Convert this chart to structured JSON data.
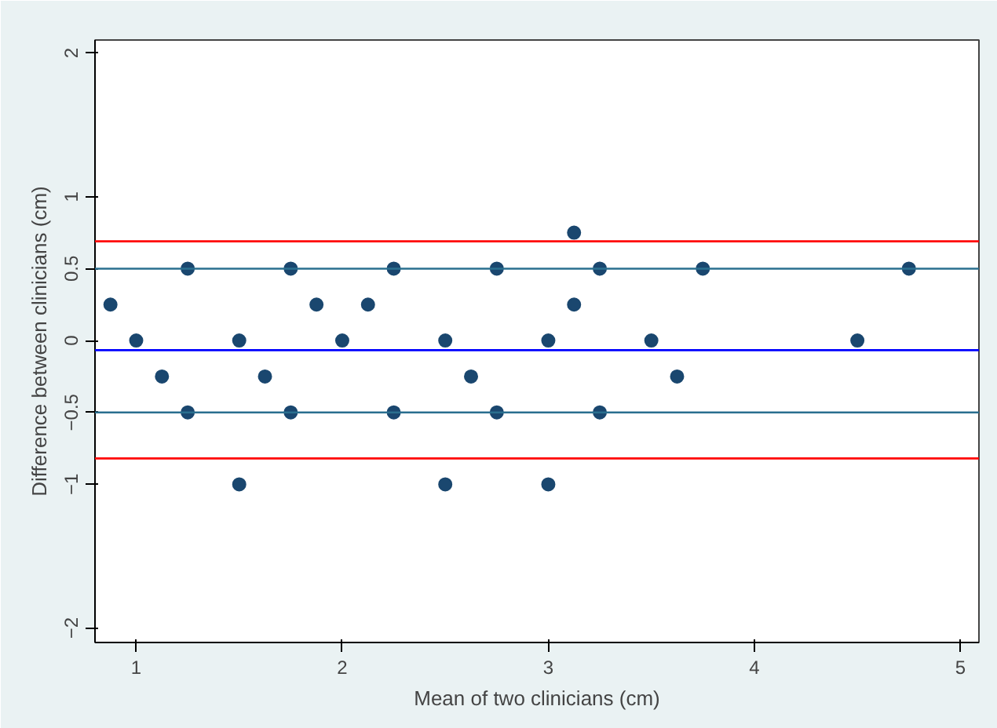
{
  "chart_data": {
    "type": "scatter",
    "xlabel": "Mean of two clinicians (cm)",
    "ylabel": "Difference between clinicians (cm)",
    "x": [
      0.875,
      1,
      1.125,
      1.25,
      1.25,
      1.5,
      1.5,
      1.625,
      1.75,
      1.75,
      1.875,
      2,
      2.125,
      2.25,
      2.25,
      2.5,
      2.5,
      2.625,
      2.75,
      2.75,
      3,
      3,
      3.125,
      3.125,
      3.25,
      3.25,
      3.5,
      3.625,
      3.75,
      4.5,
      4.75
    ],
    "series": [
      {
        "color": "#1a476f",
        "values": [
          0.25,
          0,
          -0.25,
          0.5,
          -0.5,
          0,
          -1,
          -0.25,
          0.5,
          -0.5,
          0.25,
          0,
          0.25,
          0.5,
          -0.5,
          0,
          -1,
          -0.25,
          0.5,
          -0.5,
          0,
          -1,
          0.75,
          0.25,
          0.5,
          -0.5,
          0,
          -0.25,
          0.5,
          0,
          0.5
        ]
      }
    ],
    "xlim": [
      0.8,
      5.09
    ],
    "ylim": [
      -2.1,
      2.09
    ],
    "xticks": [
      1,
      2,
      3,
      4,
      5
    ],
    "yticks": [
      -2,
      -1,
      -0.5,
      0,
      0.5,
      1,
      2
    ],
    "ref_lines": [
      {
        "axis": "y",
        "value": 0.69,
        "color": "#ff0000"
      },
      {
        "axis": "y",
        "value": 0.5,
        "color": "#2a6f8f"
      },
      {
        "axis": "y",
        "value": -0.067,
        "color": "#0000ff"
      },
      {
        "axis": "y",
        "value": -0.5,
        "color": "#2a6f8f"
      },
      {
        "axis": "y",
        "value": -0.82,
        "color": "#ff0000"
      }
    ],
    "marker": "circle",
    "grid": false
  }
}
